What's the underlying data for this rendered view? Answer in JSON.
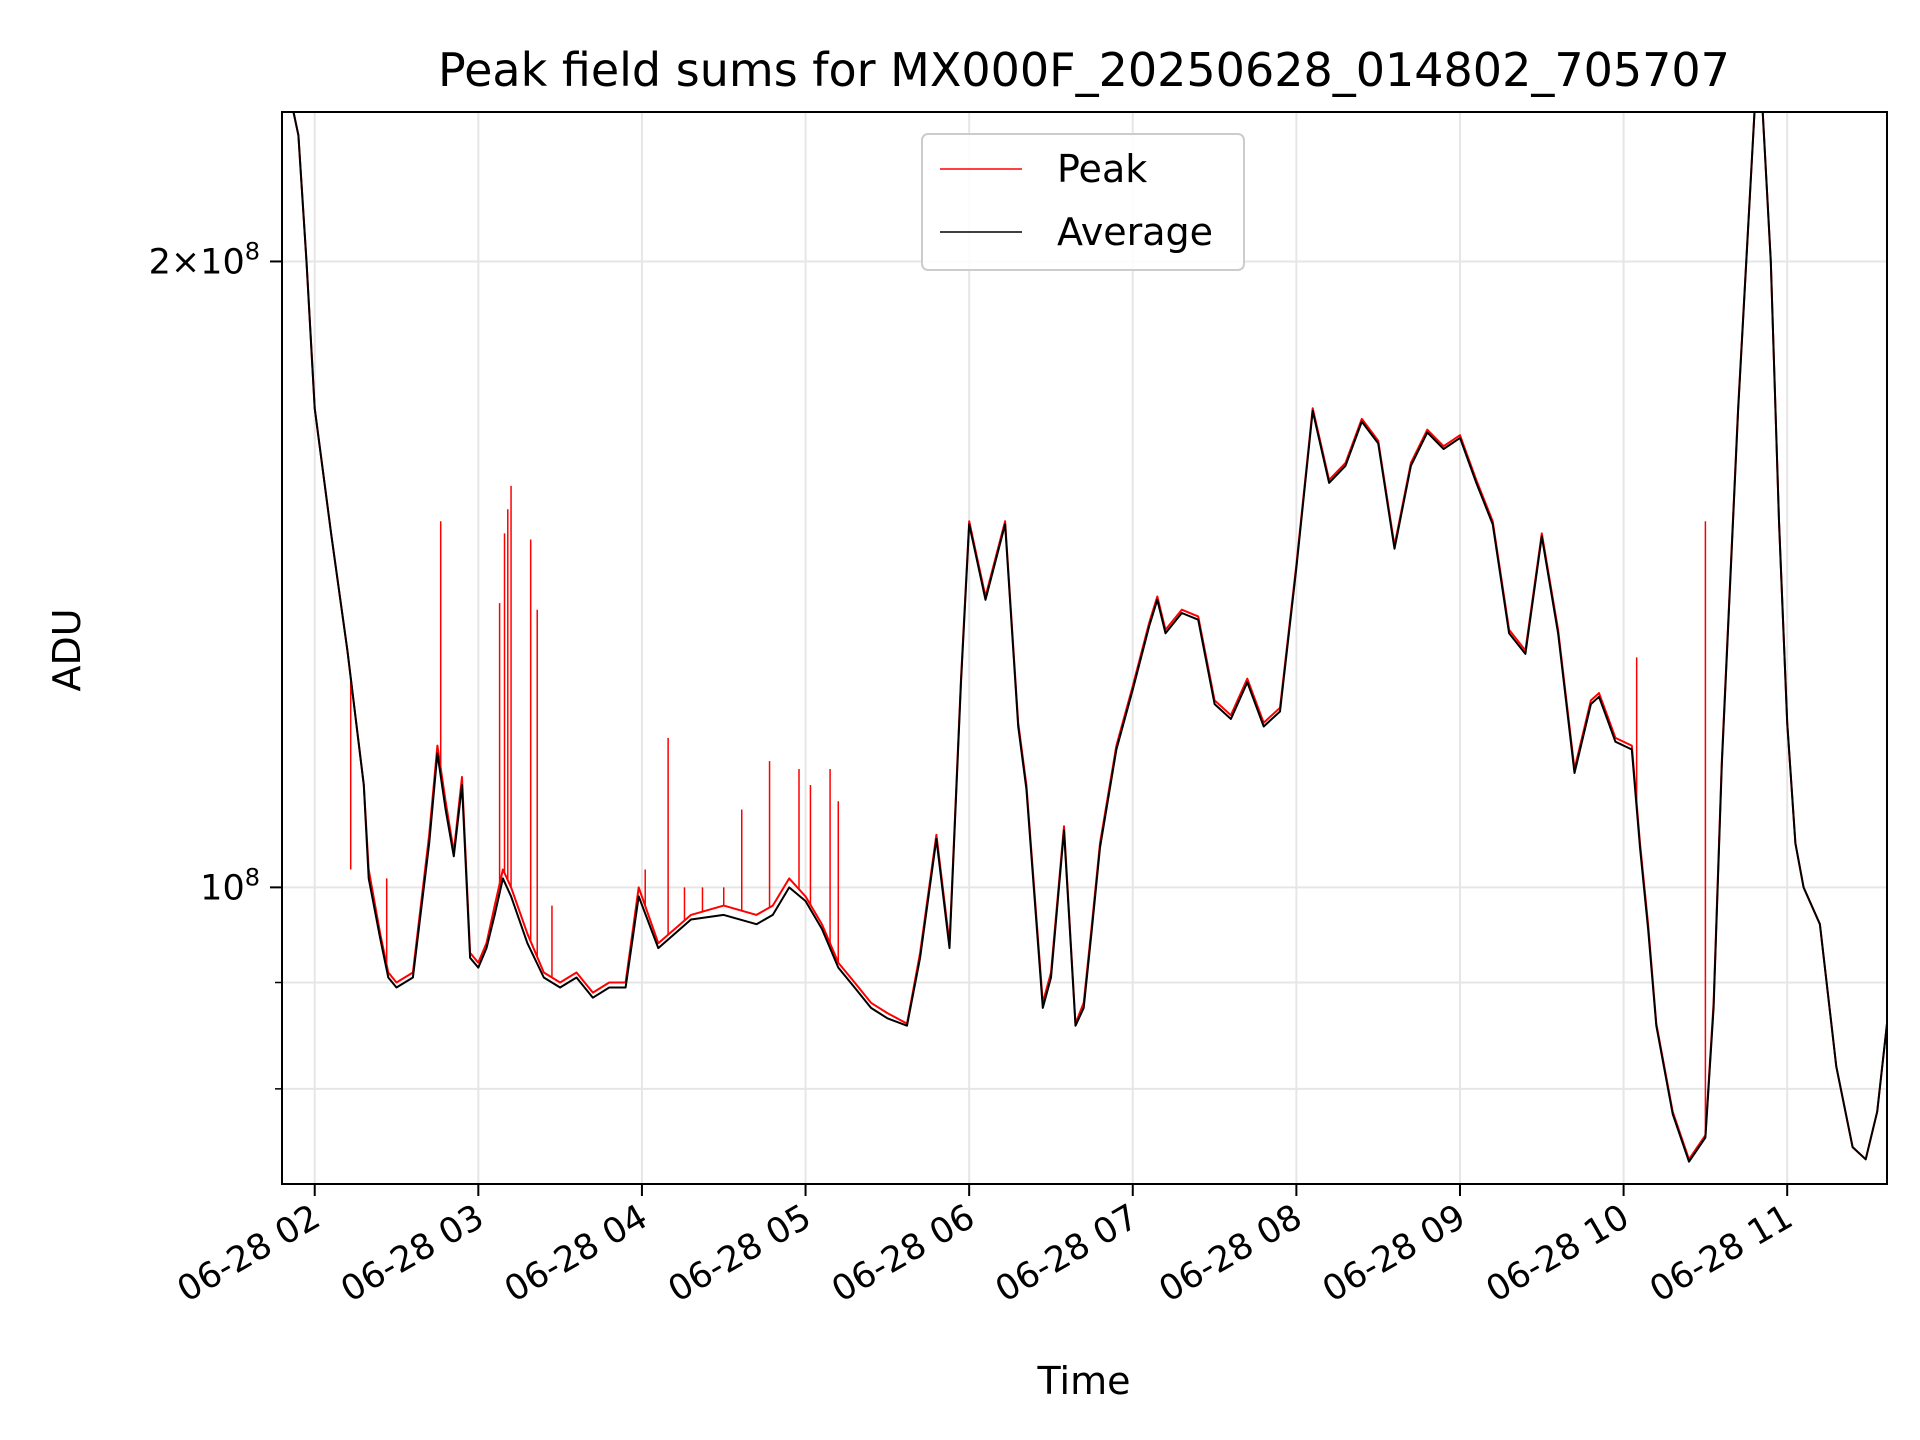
{
  "chart_data": {
    "type": "line",
    "title": "Peak field sums for MX000F_20250628_014802_705707",
    "xlabel": "Time",
    "ylabel": "ADU",
    "yscale": "log",
    "grid": true,
    "legend": "top-center",
    "x_ticks": [
      "06-28 02",
      "06-28 03",
      "06-28 04",
      "06-28 05",
      "06-28 06",
      "06-28 07",
      "06-28 08",
      "06-28 09",
      "06-28 10",
      "06-28 11"
    ],
    "y_ticks": [
      "10^8",
      "2×10^8"
    ],
    "x_hours_unit": "hours after 2025-06-28 00:00",
    "xlim": [
      1.8,
      11.61
    ],
    "ylim": [
      72000000,
      236000000
    ],
    "series": [
      {
        "name": "Peak",
        "color": "#ff0000",
        "x": [
          1.8,
          1.87,
          1.9,
          1.95,
          2.0,
          2.1,
          2.2,
          2.3,
          2.33,
          2.4,
          2.45,
          2.5,
          2.6,
          2.7,
          2.75,
          2.8,
          2.85,
          2.9,
          2.95,
          3.0,
          3.05,
          3.1,
          3.15,
          3.2,
          3.3,
          3.4,
          3.5,
          3.6,
          3.7,
          3.8,
          3.9,
          3.98,
          4.1,
          4.3,
          4.5,
          4.7,
          4.8,
          4.9,
          5.0,
          5.1,
          5.2,
          5.3,
          5.4,
          5.5,
          5.62,
          5.7,
          5.8,
          5.88,
          5.95,
          6.0,
          6.1,
          6.22,
          6.3,
          6.35,
          6.45,
          6.5,
          6.58,
          6.65,
          6.7,
          6.75,
          6.8,
          6.9,
          7.0,
          7.1,
          7.15,
          7.2,
          7.3,
          7.4,
          7.5,
          7.6,
          7.7,
          7.8,
          7.9,
          8.0,
          8.1,
          8.2,
          8.3,
          8.4,
          8.5,
          8.6,
          8.7,
          8.8,
          8.9,
          9.0,
          9.1,
          9.2,
          9.3,
          9.4,
          9.5,
          9.6,
          9.7,
          9.8,
          9.85,
          9.9,
          9.95,
          10.05,
          10.1,
          10.15,
          10.2,
          10.3,
          10.4,
          10.5,
          10.55,
          10.6,
          10.7,
          10.8,
          10.85,
          10.9,
          10.95,
          11.0,
          11.05,
          11.1,
          11.2,
          11.3,
          11.4,
          11.48,
          11.55,
          11.61
        ],
        "values": [
          236000000,
          236000000,
          230000000,
          200000000,
          170000000,
          148000000,
          130000000,
          112000000,
          102000000,
          95000000,
          91000000,
          90000000,
          91000000,
          106000000,
          117000000,
          110000000,
          104000000,
          113000000,
          93000000,
          92000000,
          94000000,
          98000000,
          102000000,
          100000000,
          95000000,
          91000000,
          90000000,
          91000000,
          89000000,
          90000000,
          90000000,
          100000000,
          94000000,
          97000000,
          98000000,
          97000000,
          98000000,
          101000000,
          99000000,
          96000000,
          92000000,
          90000000,
          88000000,
          87000000,
          86000000,
          93000000,
          106000000,
          94000000,
          126000000,
          150000000,
          138000000,
          150000000,
          120000000,
          112000000,
          88000000,
          91000000,
          107000000,
          86000000,
          88000000,
          96000000,
          105000000,
          117000000,
          125000000,
          134000000,
          138000000,
          133000000,
          136000000,
          135000000,
          123000000,
          121000000,
          126000000,
          120000000,
          122000000,
          143000000,
          170000000,
          157000000,
          160000000,
          168000000,
          164000000,
          146000000,
          160000000,
          166000000,
          163000000,
          165000000,
          157000000,
          150000000,
          133000000,
          130000000,
          148000000,
          133000000,
          114000000,
          123000000,
          124000000,
          121000000,
          118000000,
          117000000,
          105000000,
          96000000,
          86000000,
          78000000,
          74000000,
          76000000,
          88000000,
          115000000,
          170000000,
          236000000,
          236000000,
          200000000,
          150000000,
          120000000,
          105000000,
          100000000,
          96000000,
          82000000,
          75000000,
          74000000,
          78000000,
          86000000
        ],
        "spikes": [
          {
            "x": 2.22,
            "value": 102000000
          },
          {
            "x": 2.44,
            "value": 101000000
          },
          {
            "x": 2.77,
            "value": 150000000
          },
          {
            "x": 3.13,
            "value": 137000000
          },
          {
            "x": 3.16,
            "value": 148000000
          },
          {
            "x": 3.18,
            "value": 152000000
          },
          {
            "x": 3.2,
            "value": 156000000
          },
          {
            "x": 3.32,
            "value": 147000000
          },
          {
            "x": 3.36,
            "value": 136000000
          },
          {
            "x": 3.45,
            "value": 98000000
          },
          {
            "x": 4.02,
            "value": 102000000
          },
          {
            "x": 4.16,
            "value": 118000000
          },
          {
            "x": 4.26,
            "value": 100000000
          },
          {
            "x": 4.37,
            "value": 100000000
          },
          {
            "x": 4.5,
            "value": 100000000
          },
          {
            "x": 4.61,
            "value": 109000000
          },
          {
            "x": 4.78,
            "value": 115000000
          },
          {
            "x": 4.96,
            "value": 114000000
          },
          {
            "x": 5.03,
            "value": 112000000
          },
          {
            "x": 5.15,
            "value": 114000000
          },
          {
            "x": 5.2,
            "value": 110000000
          },
          {
            "x": 10.08,
            "value": 129000000
          },
          {
            "x": 10.5,
            "value": 150000000
          }
        ]
      },
      {
        "name": "Average",
        "color": "#000000",
        "x": [
          1.8,
          1.87,
          1.9,
          1.95,
          2.0,
          2.1,
          2.2,
          2.3,
          2.33,
          2.4,
          2.45,
          2.5,
          2.6,
          2.7,
          2.75,
          2.8,
          2.85,
          2.9,
          2.95,
          3.0,
          3.05,
          3.1,
          3.15,
          3.2,
          3.3,
          3.4,
          3.5,
          3.6,
          3.7,
          3.8,
          3.9,
          3.98,
          4.1,
          4.3,
          4.5,
          4.7,
          4.8,
          4.9,
          5.0,
          5.1,
          5.2,
          5.3,
          5.4,
          5.5,
          5.62,
          5.7,
          5.8,
          5.88,
          5.95,
          6.0,
          6.1,
          6.22,
          6.3,
          6.35,
          6.45,
          6.5,
          6.58,
          6.65,
          6.7,
          6.75,
          6.8,
          6.9,
          7.0,
          7.1,
          7.15,
          7.2,
          7.3,
          7.4,
          7.5,
          7.6,
          7.7,
          7.8,
          7.9,
          8.0,
          8.1,
          8.2,
          8.3,
          8.4,
          8.5,
          8.6,
          8.7,
          8.8,
          8.9,
          9.0,
          9.1,
          9.2,
          9.3,
          9.4,
          9.5,
          9.6,
          9.7,
          9.8,
          9.85,
          9.9,
          9.95,
          10.05,
          10.1,
          10.15,
          10.2,
          10.3,
          10.4,
          10.5,
          10.55,
          10.6,
          10.7,
          10.8,
          10.85,
          10.9,
          10.95,
          11.0,
          11.05,
          11.1,
          11.2,
          11.3,
          11.4,
          11.48,
          11.55,
          11.61
        ],
        "values": [
          236000000,
          236000000,
          230000000,
          200000000,
          170000000,
          148000000,
          130000000,
          112000000,
          101000000,
          94500000,
          90500000,
          89500000,
          90500000,
          105000000,
          116000000,
          109000000,
          103500000,
          112000000,
          92500000,
          91500000,
          93500000,
          97000000,
          101000000,
          99000000,
          94000000,
          90500000,
          89500000,
          90500000,
          88500000,
          89500000,
          89500000,
          99000000,
          93500000,
          96500000,
          97000000,
          96000000,
          97000000,
          100000000,
          98500000,
          95500000,
          91500000,
          89500000,
          87500000,
          86500000,
          85800000,
          92500000,
          105500000,
          93500000,
          125500000,
          149500000,
          137500000,
          149500000,
          119500000,
          111500000,
          87500000,
          90500000,
          106500000,
          85800000,
          87500000,
          95500000,
          104500000,
          116500000,
          124500000,
          133500000,
          137500000,
          132500000,
          135500000,
          134500000,
          122500000,
          120500000,
          125500000,
          119500000,
          121500000,
          142500000,
          169500000,
          156500000,
          159500000,
          167500000,
          163500000,
          145500000,
          159500000,
          165500000,
          162500000,
          164500000,
          156500000,
          149500000,
          132500000,
          129500000,
          147500000,
          132500000,
          113500000,
          122500000,
          123500000,
          120500000,
          117500000,
          116500000,
          104500000,
          95500000,
          85800000,
          77800000,
          73800000,
          75800000,
          87500000,
          114500000,
          169500000,
          236000000,
          236000000,
          200000000,
          150000000,
          120000000,
          105000000,
          100000000,
          96000000,
          82000000,
          75000000,
          74000000,
          78000000,
          86000000
        ]
      }
    ]
  }
}
